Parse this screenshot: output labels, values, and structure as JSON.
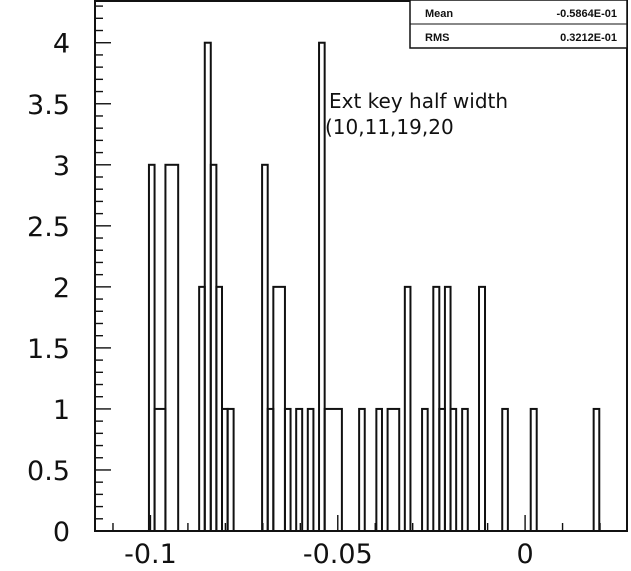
{
  "chart_data": {
    "type": "bar",
    "title": "",
    "xlabel": "",
    "ylabel": "",
    "annotation": [
      "Ext key half width",
      "(10,11,19,20"
    ],
    "stats": {
      "mean_label": "Mean",
      "mean_value": "-0.5864E-01",
      "rms_label": "RMS",
      "rms_value": "0.3212E-01"
    },
    "xlim": [
      -0.1148,
      0.0272
    ],
    "ylim": [
      0,
      4.35
    ],
    "x_ticks": [
      {
        "value": -0.1,
        "label": "-0.1"
      },
      {
        "value": -0.05,
        "label": "-0.05"
      },
      {
        "value": 0,
        "label": "0"
      }
    ],
    "y_ticks": [
      {
        "value": 0,
        "label": "0"
      },
      {
        "value": 0.5,
        "label": "0.5"
      },
      {
        "value": 1,
        "label": "1"
      },
      {
        "value": 1.5,
        "label": "1.5"
      },
      {
        "value": 2,
        "label": "2"
      },
      {
        "value": 2.5,
        "label": "2.5"
      },
      {
        "value": 3,
        "label": "3"
      },
      {
        "value": 3.5,
        "label": "3.5"
      },
      {
        "value": 4,
        "label": "4"
      }
    ],
    "bins": [
      {
        "x_low": -0.1004,
        "x_high": -0.0989,
        "count": 3
      },
      {
        "x_low": -0.0989,
        "x_high": -0.096,
        "count": 1
      },
      {
        "x_low": -0.096,
        "x_high": -0.0926,
        "count": 3
      },
      {
        "x_low": -0.087,
        "x_high": -0.0855,
        "count": 2
      },
      {
        "x_low": -0.0855,
        "x_high": -0.0839,
        "count": 4
      },
      {
        "x_low": -0.0839,
        "x_high": -0.0824,
        "count": 3
      },
      {
        "x_low": -0.0824,
        "x_high": -0.0809,
        "count": 2
      },
      {
        "x_low": -0.0809,
        "x_high": -0.0794,
        "count": 1
      },
      {
        "x_low": -0.0794,
        "x_high": -0.0778,
        "count": 1
      },
      {
        "x_low": -0.0702,
        "x_high": -0.0687,
        "count": 3
      },
      {
        "x_low": -0.0687,
        "x_high": -0.0672,
        "count": 1
      },
      {
        "x_low": -0.0672,
        "x_high": -0.0641,
        "count": 2
      },
      {
        "x_low": -0.0641,
        "x_high": -0.0626,
        "count": 1
      },
      {
        "x_low": -0.0611,
        "x_high": -0.0595,
        "count": 1
      },
      {
        "x_low": -0.058,
        "x_high": -0.0565,
        "count": 1
      },
      {
        "x_low": -0.055,
        "x_high": -0.0535,
        "count": 4
      },
      {
        "x_low": -0.0535,
        "x_high": -0.0489,
        "count": 1
      },
      {
        "x_low": -0.0443,
        "x_high": -0.0428,
        "count": 1
      },
      {
        "x_low": -0.0397,
        "x_high": -0.0382,
        "count": 1
      },
      {
        "x_low": -0.0367,
        "x_high": -0.0336,
        "count": 1
      },
      {
        "x_low": -0.0321,
        "x_high": -0.0306,
        "count": 2
      },
      {
        "x_low": -0.0275,
        "x_high": -0.026,
        "count": 1
      },
      {
        "x_low": -0.0245,
        "x_high": -0.0229,
        "count": 2
      },
      {
        "x_low": -0.0229,
        "x_high": -0.0214,
        "count": 1
      },
      {
        "x_low": -0.0214,
        "x_high": -0.0199,
        "count": 2
      },
      {
        "x_low": -0.0199,
        "x_high": -0.0184,
        "count": 1
      },
      {
        "x_low": -0.0168,
        "x_high": -0.0153,
        "count": 1
      },
      {
        "x_low": -0.0123,
        "x_high": -0.0107,
        "count": 2
      },
      {
        "x_low": -0.0061,
        "x_high": -0.0046,
        "count": 1
      },
      {
        "x_low": 0.0015,
        "x_high": 0.0031,
        "count": 1
      },
      {
        "x_low": 0.0183,
        "x_high": 0.0198,
        "count": 1
      }
    ]
  }
}
